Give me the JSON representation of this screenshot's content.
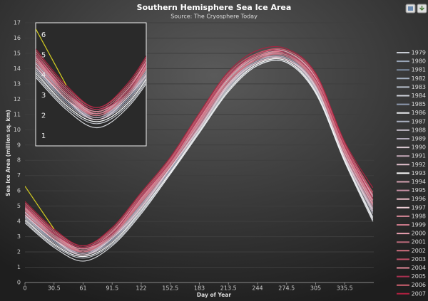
{
  "chart_data": {
    "type": "line",
    "title": "Southern Hemisphere Sea Ice Area",
    "subtitle": "Source: The Cryosphere Today",
    "x_label": "Day of Year",
    "y_label": "Sea Ice Area (million sq. km)",
    "x": [
      0,
      30.5,
      61,
      91.5,
      122,
      152.5,
      183,
      213.5,
      244,
      274.5,
      305,
      335.5,
      365
    ],
    "xlim": [
      0,
      366
    ],
    "xticks": [
      0,
      30.5,
      61,
      91.5,
      122,
      152.5,
      183,
      213.5,
      244,
      274.5,
      305,
      335.5
    ],
    "ylim": [
      0,
      17
    ],
    "yticks": [
      0,
      1,
      2,
      3,
      4,
      5,
      6,
      7,
      8,
      9,
      10,
      11,
      12,
      13,
      14,
      15,
      16,
      17
    ],
    "grid": true,
    "legend": "right",
    "inset": {
      "xlim": [
        0,
        110
      ],
      "ylim": [
        0.5,
        6.6
      ],
      "yticks": [
        1,
        2,
        3,
        4,
        5,
        6
      ]
    },
    "series": [
      {
        "name": "1979",
        "color": "#c8ccd4",
        "values": [
          4.2,
          2.5,
          1.7,
          2.6,
          4.8,
          7.2,
          10.0,
          12.7,
          14.3,
          14.5,
          12.6,
          8.1,
          4.3
        ]
      },
      {
        "name": "1980",
        "color": "#9aa6b8",
        "values": [
          4.5,
          2.8,
          1.9,
          2.9,
          5.1,
          7.5,
          10.3,
          13.0,
          14.5,
          14.7,
          12.9,
          8.4,
          4.8
        ]
      },
      {
        "name": "1981",
        "color": "#7b8aa0",
        "values": [
          4.7,
          3.0,
          2.0,
          3.1,
          5.3,
          7.7,
          10.5,
          13.2,
          14.6,
          14.9,
          13.1,
          8.6,
          5.1
        ]
      },
      {
        "name": "1982",
        "color": "#a4afc0",
        "values": [
          4.3,
          2.7,
          1.8,
          2.8,
          4.9,
          7.4,
          10.1,
          12.8,
          14.4,
          14.6,
          12.7,
          8.2,
          4.6
        ]
      },
      {
        "name": "1983",
        "color": "#b8c0cc",
        "values": [
          4.6,
          2.9,
          2.0,
          3.0,
          5.2,
          7.6,
          10.4,
          13.1,
          14.6,
          14.8,
          13.0,
          8.5,
          5.0
        ]
      },
      {
        "name": "1984",
        "color": "#d0d4dc",
        "values": [
          4.0,
          2.4,
          1.6,
          2.5,
          4.6,
          7.1,
          9.8,
          12.5,
          14.2,
          14.4,
          12.4,
          7.9,
          4.1
        ]
      },
      {
        "name": "1985",
        "color": "#8e9ab0",
        "values": [
          4.4,
          2.7,
          1.9,
          2.8,
          5.0,
          7.4,
          10.2,
          12.9,
          14.5,
          14.7,
          12.8,
          8.3,
          4.7
        ]
      },
      {
        "name": "1986",
        "color": "#e8eaee",
        "values": [
          3.9,
          2.3,
          1.4,
          2.4,
          4.5,
          7.1,
          9.8,
          12.5,
          14.2,
          14.4,
          12.4,
          7.9,
          4.0
        ]
      },
      {
        "name": "1987",
        "color": "#aab0c0",
        "values": [
          4.7,
          3.0,
          2.1,
          3.1,
          5.3,
          7.7,
          10.5,
          13.2,
          14.7,
          14.9,
          13.1,
          8.6,
          5.2
        ]
      },
      {
        "name": "1988",
        "color": "#c0b8c4",
        "values": [
          4.3,
          2.6,
          1.8,
          2.7,
          4.9,
          7.3,
          10.1,
          12.8,
          14.4,
          14.6,
          12.7,
          8.2,
          4.5
        ]
      },
      {
        "name": "1989",
        "color": "#b0a8b8",
        "values": [
          4.5,
          2.8,
          2.0,
          2.9,
          5.1,
          7.5,
          10.3,
          13.0,
          14.5,
          14.7,
          12.9,
          8.4,
          4.9
        ]
      },
      {
        "name": "1990",
        "color": "#d8c8d0",
        "values": [
          4.8,
          3.1,
          2.1,
          3.2,
          5.4,
          7.8,
          10.6,
          13.3,
          14.8,
          15.0,
          13.2,
          8.7,
          5.3
        ]
      },
      {
        "name": "1991",
        "color": "#c4a8b8",
        "values": [
          4.4,
          2.9,
          1.9,
          3.0,
          5.0,
          7.6,
          10.2,
          13.0,
          14.6,
          14.6,
          12.9,
          8.3,
          4.8
        ]
      },
      {
        "name": "1992",
        "color": "#e0c0cc",
        "values": [
          4.6,
          2.8,
          2.1,
          3.0,
          5.3,
          7.5,
          10.5,
          13.0,
          14.7,
          14.8,
          13.1,
          8.5,
          5.1
        ]
      },
      {
        "name": "1993",
        "color": "#ffffff",
        "values": [
          4.1,
          2.5,
          1.7,
          2.6,
          4.7,
          7.2,
          9.9,
          12.6,
          14.3,
          14.5,
          12.5,
          8.0,
          4.2
        ]
      },
      {
        "name": "1994",
        "color": "#d4a0b0",
        "values": [
          4.9,
          3.1,
          2.2,
          3.2,
          5.5,
          7.8,
          10.7,
          13.4,
          14.8,
          15.0,
          13.3,
          8.8,
          5.4
        ]
      },
      {
        "name": "1995",
        "color": "#c890a4",
        "values": [
          4.7,
          2.9,
          2.1,
          3.0,
          5.3,
          7.6,
          10.4,
          13.2,
          14.7,
          14.8,
          13.0,
          8.6,
          5.2
        ]
      },
      {
        "name": "1996",
        "color": "#e8b8c4",
        "values": [
          5.0,
          3.2,
          2.2,
          3.3,
          5.6,
          7.9,
          10.8,
          13.5,
          14.9,
          15.1,
          13.4,
          8.9,
          5.6
        ]
      },
      {
        "name": "1997",
        "color": "#f0d0d8",
        "values": [
          4.4,
          2.8,
          1.8,
          2.9,
          4.9,
          7.5,
          10.1,
          12.9,
          14.4,
          14.6,
          12.8,
          8.2,
          4.7
        ]
      },
      {
        "name": "1998",
        "color": "#d88898",
        "values": [
          4.8,
          3.0,
          2.1,
          3.2,
          5.4,
          7.7,
          10.6,
          13.2,
          14.7,
          15.0,
          13.1,
          8.7,
          5.2
        ]
      },
      {
        "name": "1999",
        "color": "#c87888",
        "values": [
          4.8,
          3.2,
          2.1,
          3.1,
          5.4,
          7.9,
          10.6,
          13.4,
          14.8,
          14.9,
          13.2,
          8.7,
          5.4
        ]
      },
      {
        "name": "2000",
        "color": "#e8a0b0",
        "values": [
          5.0,
          3.3,
          2.3,
          3.4,
          5.6,
          8.0,
          10.8,
          13.5,
          14.9,
          15.1,
          13.4,
          8.9,
          5.7
        ]
      },
      {
        "name": "2001",
        "color": "#b86878",
        "values": [
          4.5,
          2.9,
          2.0,
          3.1,
          5.2,
          7.6,
          10.3,
          13.1,
          14.6,
          14.8,
          13.0,
          8.4,
          5.0
        ]
      },
      {
        "name": "2002",
        "color": "#d07080",
        "values": [
          4.7,
          3.1,
          2.0,
          3.1,
          5.3,
          7.8,
          10.5,
          13.2,
          14.6,
          14.9,
          13.1,
          8.6,
          5.2
        ]
      },
      {
        "name": "2003",
        "color": "#c05068",
        "values": [
          5.1,
          3.3,
          2.3,
          3.4,
          5.7,
          8.0,
          10.9,
          13.6,
          14.9,
          15.2,
          13.5,
          9.0,
          5.8
        ]
      },
      {
        "name": "2004",
        "color": "#e08898",
        "values": [
          4.9,
          3.2,
          2.2,
          3.3,
          5.5,
          7.9,
          10.7,
          13.4,
          14.8,
          15.0,
          13.3,
          8.8,
          5.5
        ]
      },
      {
        "name": "2005",
        "color": "#a83050",
        "values": [
          5.0,
          3.2,
          2.3,
          3.2,
          5.6,
          7.9,
          10.8,
          13.5,
          15.0,
          15.0,
          13.3,
          8.9,
          5.5
        ]
      },
      {
        "name": "2006",
        "color": "#d06070",
        "values": [
          5.2,
          3.4,
          2.4,
          3.5,
          5.8,
          8.1,
          11.0,
          13.7,
          15.0,
          15.2,
          13.6,
          9.1,
          5.9
        ]
      },
      {
        "name": "2007",
        "color": "#b02040",
        "values": [
          5.3,
          3.5,
          2.4,
          3.6,
          5.9,
          8.2,
          11.1,
          13.8,
          15.2,
          15.3,
          13.7,
          9.2,
          6.2
        ]
      },
      {
        "color": "#e8e020",
        "values": [
          6.3,
          3.5,
          null,
          null,
          null,
          null,
          null,
          null,
          null,
          null,
          null,
          null,
          null
        ]
      }
    ]
  }
}
